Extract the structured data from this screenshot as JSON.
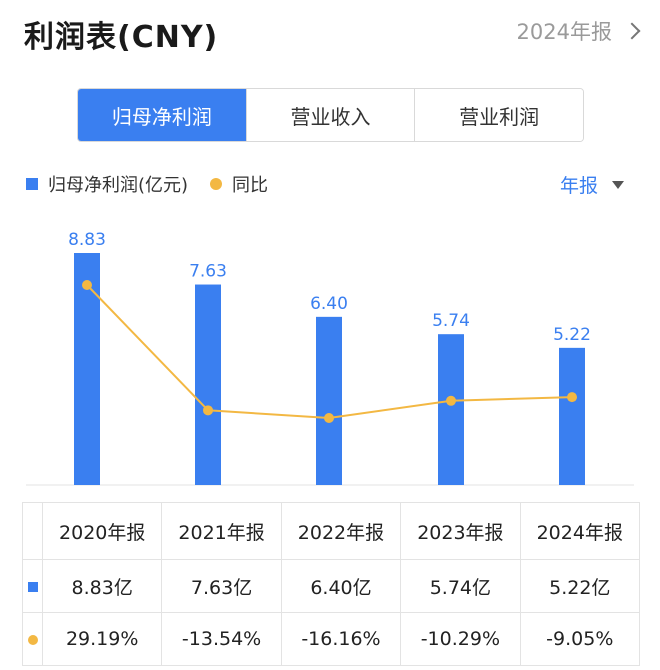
{
  "header": {
    "title": "利润表(CNY)",
    "period_link": "2024年报"
  },
  "tabs": [
    {
      "label": "归母净利润",
      "active": true
    },
    {
      "label": "营业收入",
      "active": false
    },
    {
      "label": "营业利润",
      "active": false
    }
  ],
  "legend": {
    "bar_label": "归母净利润(亿元)",
    "line_label": "同比"
  },
  "freq_select": "年报",
  "colors": {
    "accent": "#3a7ff0",
    "line": "#f3b843",
    "positive": "#e0454a",
    "negative": "#2f9e6c"
  },
  "chart_data": {
    "type": "bar",
    "categories": [
      "2020年报",
      "2021年报",
      "2022年报",
      "2023年报",
      "2024年报"
    ],
    "series": [
      {
        "name": "归母净利润(亿元)",
        "type": "bar",
        "values": [
          8.83,
          7.63,
          6.4,
          5.74,
          5.22
        ],
        "labels": [
          "8.83",
          "7.63",
          "6.40",
          "5.74",
          "5.22"
        ]
      },
      {
        "name": "同比",
        "type": "line",
        "unit": "%",
        "values": [
          29.19,
          -13.54,
          -16.16,
          -10.29,
          -9.05
        ]
      }
    ],
    "grid": false
  },
  "table": {
    "headers": [
      "2020年报",
      "2021年报",
      "2022年报",
      "2023年报",
      "2024年报"
    ],
    "profit": [
      "8.83亿",
      "7.63亿",
      "6.40亿",
      "5.74亿",
      "5.22亿"
    ],
    "yoy": [
      "29.19%",
      "-13.54%",
      "-16.16%",
      "-10.29%",
      "-9.05%"
    ]
  }
}
